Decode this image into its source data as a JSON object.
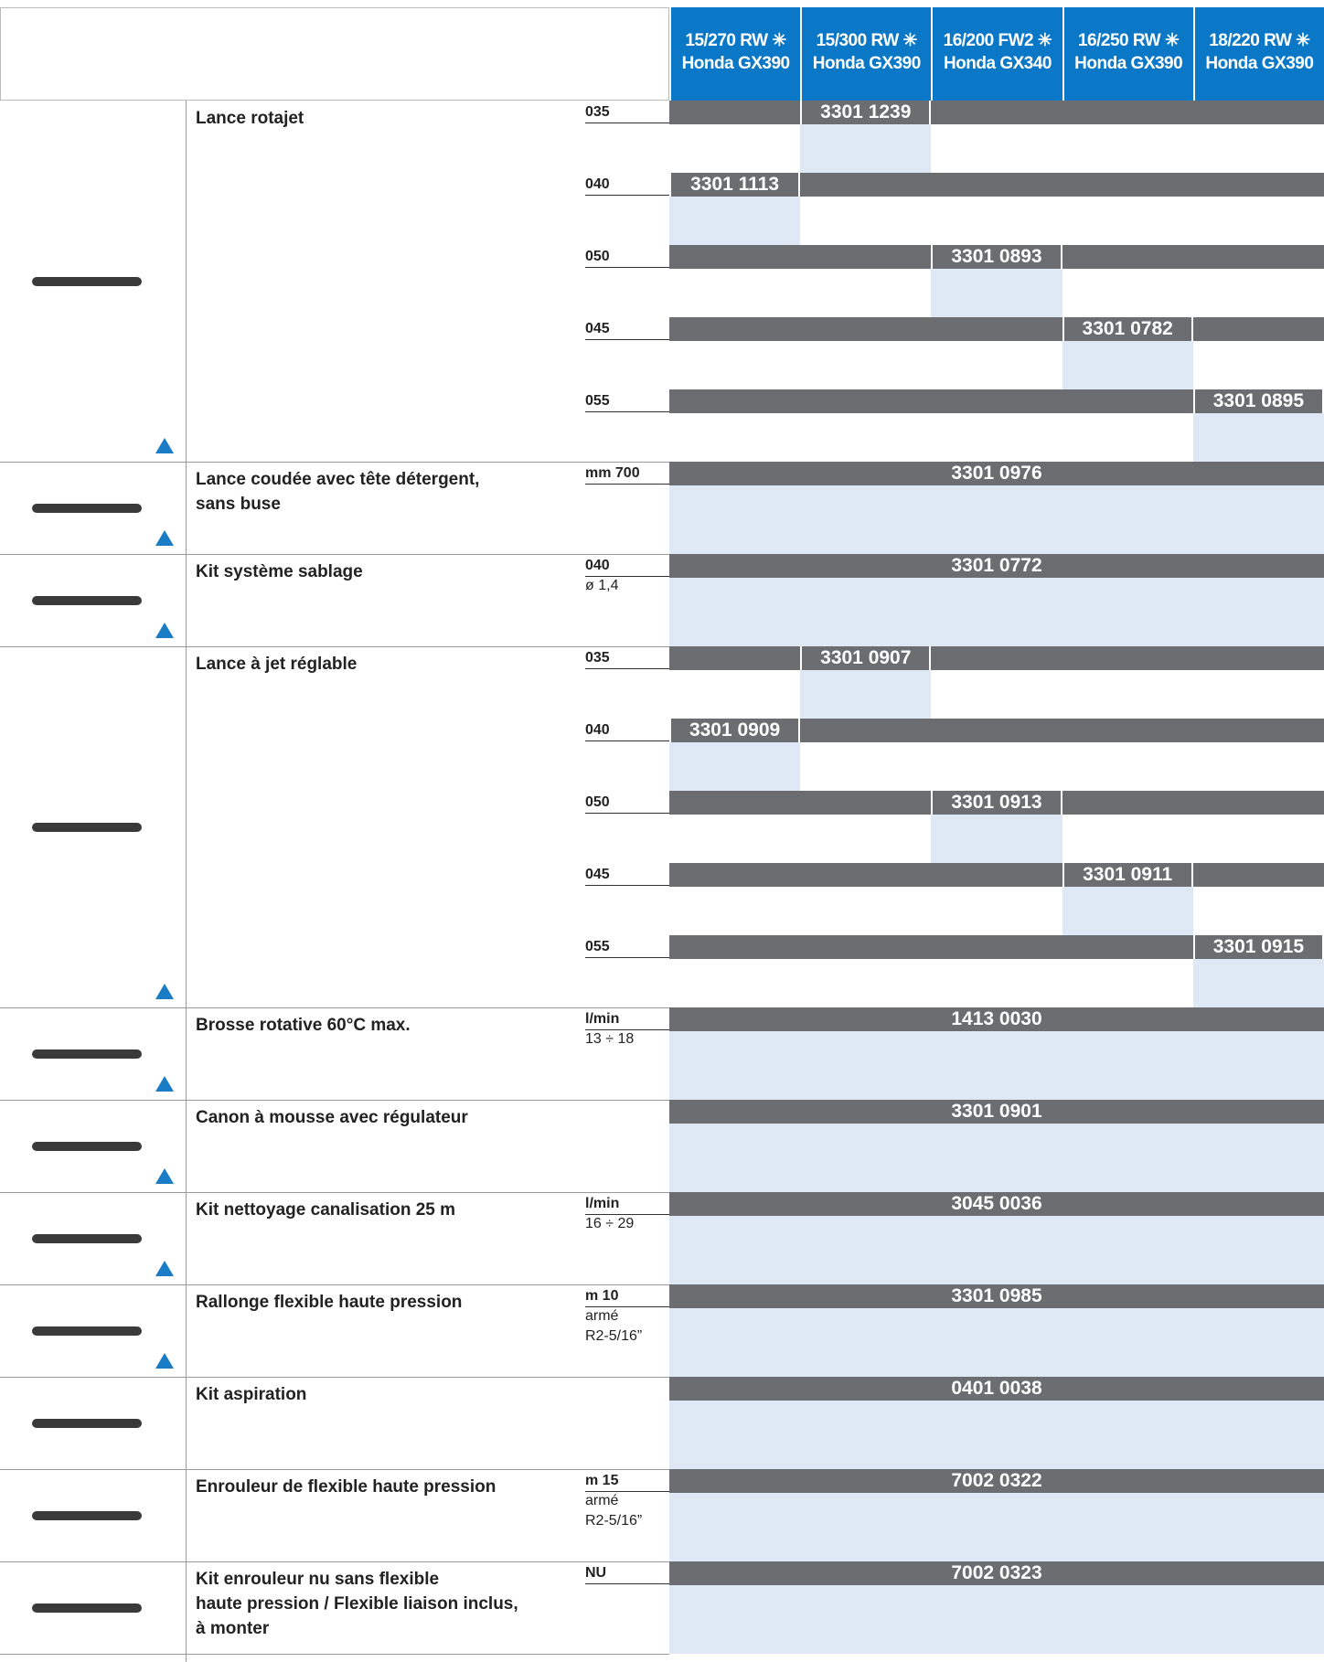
{
  "header": {
    "models": [
      [
        "15/270 RW ✳",
        "Honda GX390"
      ],
      [
        "15/300 RW ✳",
        "Honda GX390"
      ],
      [
        "16/200 FW2 ✳",
        "Honda GX340"
      ],
      [
        "16/250 RW ✳",
        "Honda GX390"
      ],
      [
        "18/220 RW ✳",
        "Honda GX390"
      ]
    ]
  },
  "rows": [
    {
      "name": [
        "Lance rotajet"
      ],
      "options": [
        {
          "spec": "035",
          "model": 1,
          "part": "3301 1239"
        },
        {
          "spec": "040",
          "model": 0,
          "part": "3301 1113"
        },
        {
          "spec": "050",
          "model": 2,
          "part": "3301 0893"
        },
        {
          "spec": "045",
          "model": 3,
          "part": "3301 0782"
        },
        {
          "spec": "055",
          "model": 4,
          "part": "3301 0895"
        }
      ]
    },
    {
      "name": [
        "Lance coudée avec tête détergent,",
        "sans buse"
      ],
      "spec": [
        "mm 700"
      ],
      "part": "3301 0976"
    },
    {
      "name": [
        "Kit système sablage"
      ],
      "spec": [
        "040",
        "ø 1,4"
      ],
      "part": "3301 0772"
    },
    {
      "name": [
        "Lance à jet réglable"
      ],
      "options": [
        {
          "spec": "035",
          "model": 1,
          "part": "3301 0907"
        },
        {
          "spec": "040",
          "model": 0,
          "part": "3301 0909"
        },
        {
          "spec": "050",
          "model": 2,
          "part": "3301 0913"
        },
        {
          "spec": "045",
          "model": 3,
          "part": "3301 0911"
        },
        {
          "spec": "055",
          "model": 4,
          "part": "3301 0915"
        }
      ]
    },
    {
      "name": [
        "Brosse rotative 60°C max."
      ],
      "spec": [
        "l/min",
        "13 ÷ 18"
      ],
      "part": "1413 0030"
    },
    {
      "name": [
        "Canon à mousse avec régulateur"
      ],
      "spec": [],
      "part": "3301 0901"
    },
    {
      "name": [
        "Kit nettoyage canalisation 25 m"
      ],
      "spec": [
        "l/min",
        "16 ÷ 29"
      ],
      "part": "3045 0036"
    },
    {
      "name": [
        "Rallonge flexible haute pression"
      ],
      "spec": [
        "m 10",
        "armé",
        "R2-5/16”"
      ],
      "part": "3301 0985"
    },
    {
      "name": [
        "Kit aspiration"
      ],
      "spec": [],
      "part": "0401 0038"
    },
    {
      "name": [
        "Enrouleur de flexible haute pression"
      ],
      "spec": [
        "m 15",
        "armé",
        "R2-5/16”"
      ],
      "part": "7002 0322"
    },
    {
      "name": [
        "Kit enrouleur nu sans flexible",
        "haute pression / Flexible liaison inclus,",
        "à monter"
      ],
      "spec": [
        "NU"
      ],
      "part": "7002 0323"
    }
  ]
}
